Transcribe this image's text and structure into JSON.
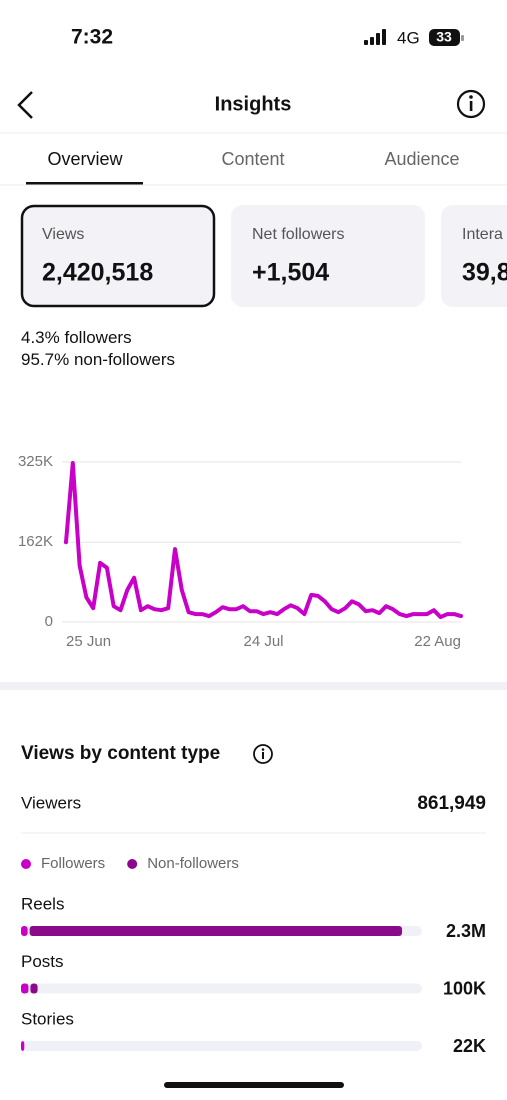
{
  "status": {
    "time": "7:32",
    "network": "4G",
    "battery": "33"
  },
  "header": {
    "title": "Insights"
  },
  "tabs": [
    "Overview",
    "Content",
    "Audience"
  ],
  "cards": [
    {
      "label": "Views",
      "value": "2,420,518"
    },
    {
      "label": "Net followers",
      "value": "+1,504"
    },
    {
      "label": "Intera",
      "value": "39,8"
    }
  ],
  "breakdown": [
    {
      "value": "4.3%",
      "label": "followers"
    },
    {
      "value": "95.7%",
      "label": "non-followers"
    }
  ],
  "chart_data": [
    {
      "type": "line",
      "categories": [
        "25 Jun",
        null,
        null,
        null,
        null,
        null,
        null,
        null,
        null,
        null,
        null,
        null,
        null,
        null,
        null,
        null,
        null,
        null,
        null,
        null,
        null,
        null,
        null,
        null,
        null,
        null,
        null,
        null,
        null,
        "24 Jul",
        null,
        null,
        null,
        null,
        null,
        null,
        null,
        null,
        null,
        null,
        null,
        null,
        null,
        null,
        null,
        null,
        null,
        null,
        null,
        null,
        null,
        null,
        null,
        null,
        null,
        null,
        null,
        null,
        "22 Aug"
      ],
      "values": [
        162000,
        323000,
        115000,
        50000,
        28000,
        120000,
        110000,
        32000,
        24000,
        65000,
        90000,
        24000,
        32000,
        26000,
        24000,
        28000,
        148000,
        65000,
        20000,
        16000,
        16000,
        12000,
        20000,
        30000,
        26000,
        26000,
        32000,
        22000,
        22000,
        16000,
        20000,
        16000,
        26000,
        34000,
        28000,
        16000,
        55000,
        53000,
        42000,
        26000,
        20000,
        28000,
        42000,
        36000,
        22000,
        24000,
        18000,
        32000,
        26000,
        16000,
        12000,
        16000,
        16000,
        16000,
        24000,
        10000,
        16000,
        16000,
        12000
      ],
      "color": "#c800c8",
      "ylim": [
        0,
        325000
      ],
      "yticks": [
        0,
        {
          "value": 162000,
          "label": "162K"
        },
        {
          "value": 325000,
          "label": "325K"
        }
      ],
      "grid": true
    },
    {
      "type": "bar",
      "title": "Views by content type",
      "summary": {
        "label": "Viewers",
        "value": "861,949"
      },
      "orientation": "horizontal",
      "stacked": true,
      "categories": [
        "Reels",
        "Posts",
        "Stories"
      ],
      "series": [
        {
          "name": "Followers",
          "color": "#c800c8",
          "values": [
            40000,
            45000,
            20000
          ]
        },
        {
          "name": "Non-followers",
          "color": "#8b0a8b",
          "values": [
            2260000,
            55000,
            2000
          ]
        }
      ],
      "total_labels": [
        "2.3M",
        "100K",
        "22K"
      ],
      "xlim": [
        0,
        2420518
      ]
    }
  ]
}
